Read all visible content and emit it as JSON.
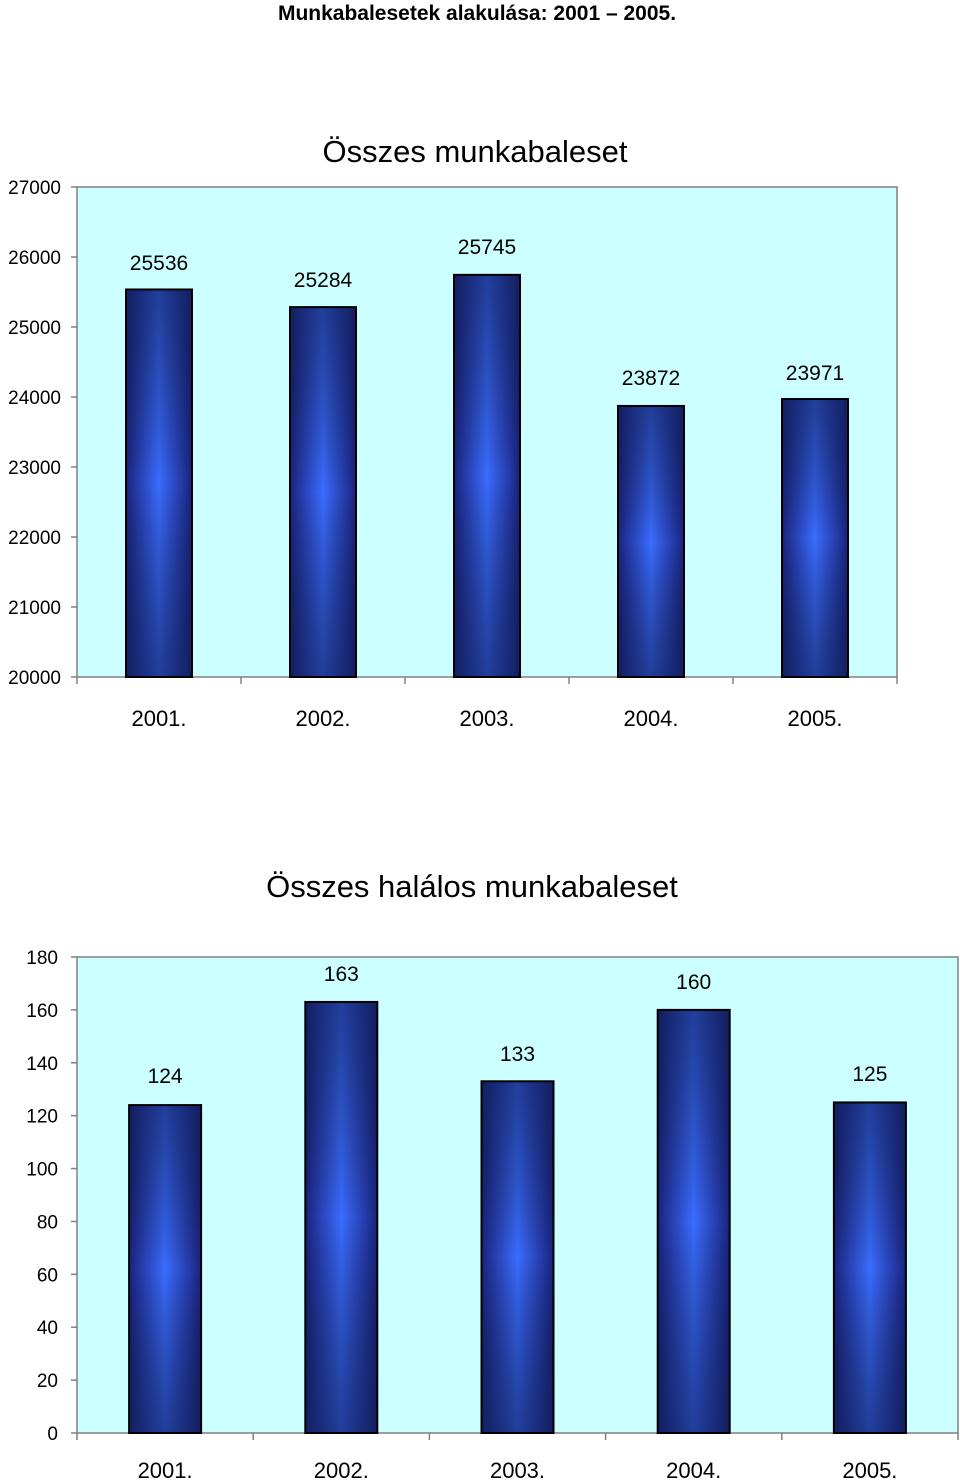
{
  "page": {
    "title": "Munkabalesetek alakulása: 2001 – 2005."
  },
  "colors": {
    "plot_background": "#ccffff",
    "bar_dark": "#1a237e",
    "bar_light": "#3a6cff",
    "axis": "#808080"
  },
  "chart_data": [
    {
      "type": "bar",
      "title": "Összes munkabaleset",
      "xlabel": "",
      "ylabel": "",
      "categories": [
        "2001.",
        "2002.",
        "2003.",
        "2004.",
        "2005."
      ],
      "values": [
        25536,
        25284,
        25745,
        23872,
        23971
      ],
      "value_labels": [
        "25536",
        "25284",
        "25745",
        "23872",
        "23971"
      ],
      "ylim": [
        20000,
        27000
      ],
      "yticks": [
        20000,
        21000,
        22000,
        23000,
        24000,
        25000,
        26000,
        27000
      ],
      "ytick_labels": [
        "20000",
        "21000",
        "22000",
        "23000",
        "24000",
        "25000",
        "26000",
        "27000"
      ],
      "grid": false,
      "legend": "none"
    },
    {
      "type": "bar",
      "title": "Összes halálos munkabaleset",
      "xlabel": "",
      "ylabel": "",
      "categories": [
        "2001.",
        "2002.",
        "2003.",
        "2004.",
        "2005."
      ],
      "values": [
        124,
        163,
        133,
        160,
        125
      ],
      "value_labels": [
        "124",
        "163",
        "133",
        "160",
        "125"
      ],
      "ylim": [
        0,
        180
      ],
      "yticks": [
        0,
        20,
        40,
        60,
        80,
        100,
        120,
        140,
        160,
        180
      ],
      "ytick_labels": [
        "0",
        "20",
        "40",
        "60",
        "80",
        "100",
        "120",
        "140",
        "160",
        "180"
      ],
      "grid": false,
      "legend": "none"
    }
  ]
}
